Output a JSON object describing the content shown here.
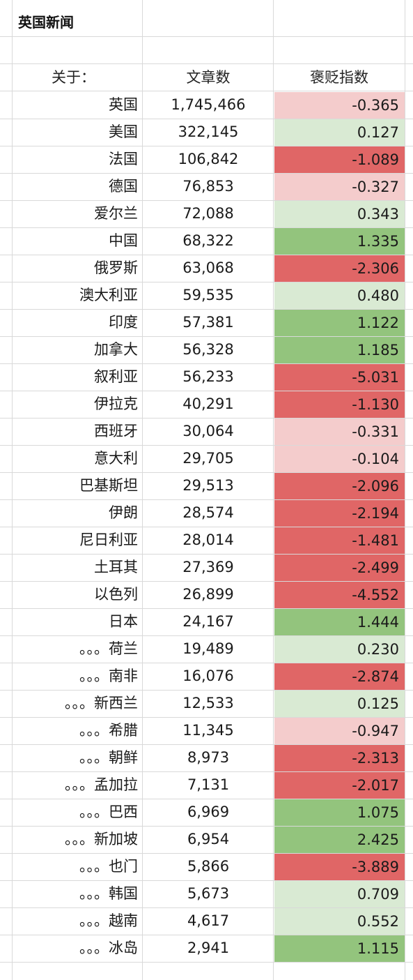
{
  "title": "英国新闻",
  "headers": {
    "about": "关于：",
    "articles": "文章数",
    "sentiment": "褒贬指数"
  },
  "colors": {
    "neg_strong": "#e06666",
    "neg_light": "#f4cccc",
    "pos_light": "#d9ead3",
    "pos_strong": "#93c47d"
  },
  "rows": [
    {
      "country": "英国",
      "articles": "1,745,466",
      "index": "-0.365",
      "level": "neg-light"
    },
    {
      "country": "美国",
      "articles": "322,145",
      "index": "0.127",
      "level": "pos-light"
    },
    {
      "country": "法国",
      "articles": "106,842",
      "index": "-1.089",
      "level": "neg-strong"
    },
    {
      "country": "德国",
      "articles": "76,853",
      "index": "-0.327",
      "level": "neg-light"
    },
    {
      "country": "爱尔兰",
      "articles": "72,088",
      "index": "0.343",
      "level": "pos-light"
    },
    {
      "country": "中国",
      "articles": "68,322",
      "index": "1.335",
      "level": "pos-strong"
    },
    {
      "country": "俄罗斯",
      "articles": "63,068",
      "index": "-2.306",
      "level": "neg-strong"
    },
    {
      "country": "澳大利亚",
      "articles": "59,535",
      "index": "0.480",
      "level": "pos-light"
    },
    {
      "country": "印度",
      "articles": "57,381",
      "index": "1.122",
      "level": "pos-strong"
    },
    {
      "country": "加拿大",
      "articles": "56,328",
      "index": "1.185",
      "level": "pos-strong"
    },
    {
      "country": "叙利亚",
      "articles": "56,233",
      "index": "-5.031",
      "level": "neg-strong"
    },
    {
      "country": "伊拉克",
      "articles": "40,291",
      "index": "-1.130",
      "level": "neg-strong"
    },
    {
      "country": "西班牙",
      "articles": "30,064",
      "index": "-0.331",
      "level": "neg-light"
    },
    {
      "country": "意大利",
      "articles": "29,705",
      "index": "-0.104",
      "level": "neg-light"
    },
    {
      "country": "巴基斯坦",
      "articles": "29,513",
      "index": "-2.096",
      "level": "neg-strong"
    },
    {
      "country": "伊朗",
      "articles": "28,574",
      "index": "-2.194",
      "level": "neg-strong"
    },
    {
      "country": "尼日利亚",
      "articles": "28,014",
      "index": "-1.481",
      "level": "neg-strong"
    },
    {
      "country": "土耳其",
      "articles": "27,369",
      "index": "-2.499",
      "level": "neg-strong"
    },
    {
      "country": "以色列",
      "articles": "26,899",
      "index": "-4.552",
      "level": "neg-strong"
    },
    {
      "country": "日本",
      "articles": "24,167",
      "index": "1.444",
      "level": "pos-strong"
    },
    {
      "country": "。。。荷兰",
      "articles": "19,489",
      "index": "0.230",
      "level": "pos-light"
    },
    {
      "country": "。。。南非",
      "articles": "16,076",
      "index": "-2.874",
      "level": "neg-strong"
    },
    {
      "country": "。。。新西兰",
      "articles": "12,533",
      "index": "0.125",
      "level": "pos-light"
    },
    {
      "country": "。。。希腊",
      "articles": "11,345",
      "index": "-0.947",
      "level": "neg-light"
    },
    {
      "country": "。。。朝鲜",
      "articles": "8,973",
      "index": "-2.313",
      "level": "neg-strong"
    },
    {
      "country": "。。。孟加拉",
      "articles": "7,131",
      "index": "-2.017",
      "level": "neg-strong"
    },
    {
      "country": "。。。巴西",
      "articles": "6,969",
      "index": "1.075",
      "level": "pos-strong"
    },
    {
      "country": "。。。新加坡",
      "articles": "6,954",
      "index": "2.425",
      "level": "pos-strong"
    },
    {
      "country": "。。。也门",
      "articles": "5,866",
      "index": "-3.889",
      "level": "neg-strong"
    },
    {
      "country": "。。。韩国",
      "articles": "5,673",
      "index": "0.709",
      "level": "pos-light"
    },
    {
      "country": "。。。越南",
      "articles": "4,617",
      "index": "0.552",
      "level": "pos-light"
    },
    {
      "country": "。。。冰岛",
      "articles": "2,941",
      "index": "1.115",
      "level": "pos-strong"
    }
  ]
}
